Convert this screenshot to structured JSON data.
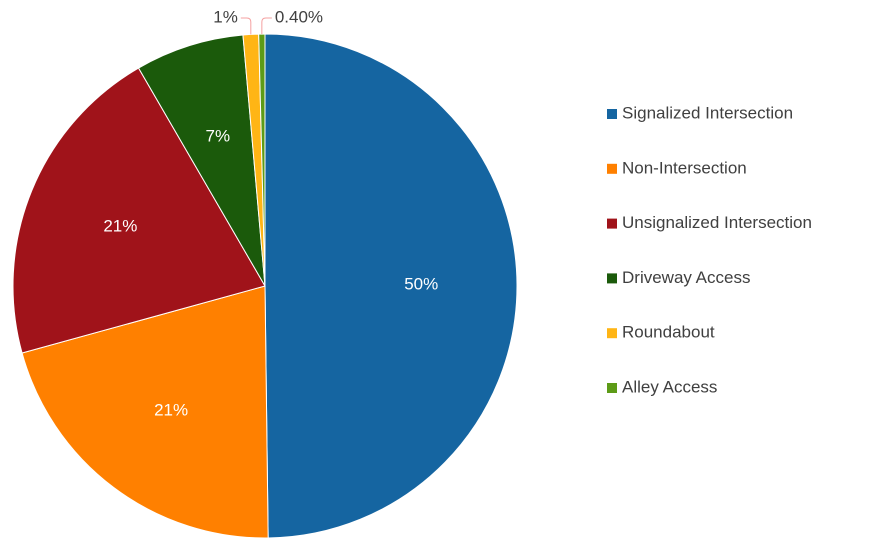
{
  "chart_data": {
    "type": "pie",
    "categories": [
      "Signalized Intersection",
      "Non-Intersection",
      "Unsignalized Intersection",
      "Driveway Access",
      "Roundabout",
      "Alley Access"
    ],
    "values": [
      50,
      21,
      21,
      7,
      1,
      0.4
    ],
    "value_labels": [
      "50%",
      "21%",
      "21%",
      "7%",
      "1%",
      "0.40%"
    ],
    "colors": [
      "#1565a1",
      "#ff8000",
      "#a0131a",
      "#1b5a0b",
      "#ffb515",
      "#5d9b17"
    ],
    "legend": "right"
  }
}
